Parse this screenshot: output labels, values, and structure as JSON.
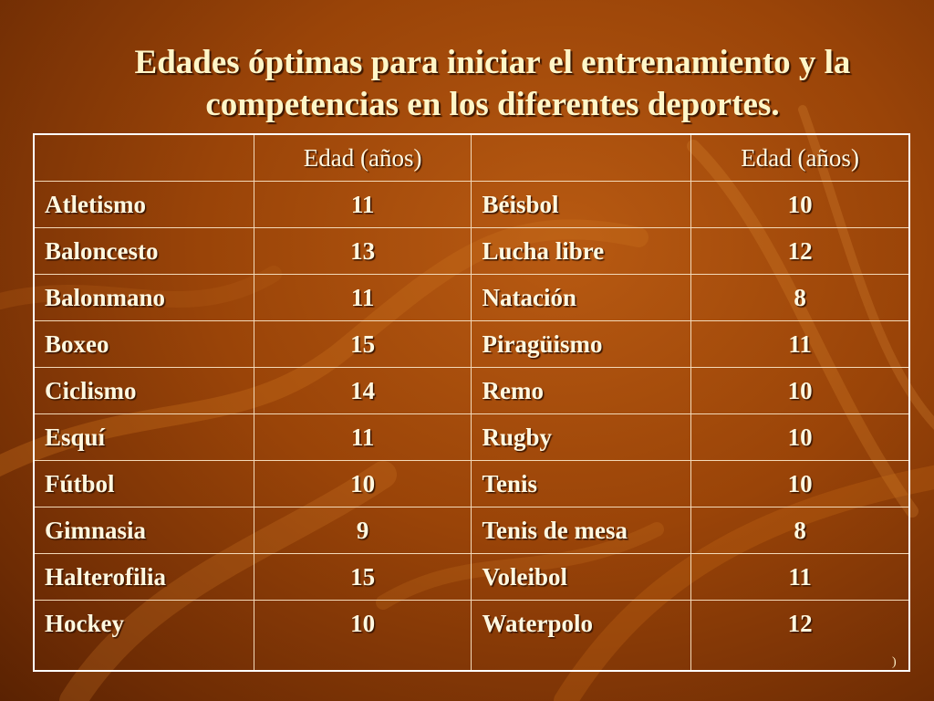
{
  "slide": {
    "title_line1": "Edades óptimas para iniciar el entrenamiento y la",
    "title_line2": "competencias en los diferentes deportes.",
    "footnote": ")",
    "colors": {
      "background": "#9a4408",
      "title": "#fff6c8",
      "text": "#fff8e0",
      "border": "#ffffff"
    }
  },
  "table": {
    "headers": [
      "",
      "Edad (años)",
      "",
      "Edad (años)"
    ],
    "rows": [
      [
        "Atletismo",
        "11",
        "Béisbol",
        "10"
      ],
      [
        "Baloncesto",
        "13",
        "Lucha libre",
        "12"
      ],
      [
        "Balonmano",
        "11",
        "Natación",
        "8"
      ],
      [
        "Boxeo",
        "15",
        "Piragüismo",
        "11"
      ],
      [
        "Ciclismo",
        "14",
        "Remo",
        "10"
      ],
      [
        "Esquí",
        "11",
        "Rugby",
        "10"
      ],
      [
        "Fútbol",
        "10",
        "Tenis",
        "10"
      ],
      [
        "Gimnasia",
        "9",
        "Tenis de mesa",
        "8"
      ],
      [
        "Halterofilia",
        "15",
        "Voleibol",
        "11"
      ],
      [
        "Hockey",
        "10",
        "Waterpolo",
        "12"
      ]
    ]
  }
}
